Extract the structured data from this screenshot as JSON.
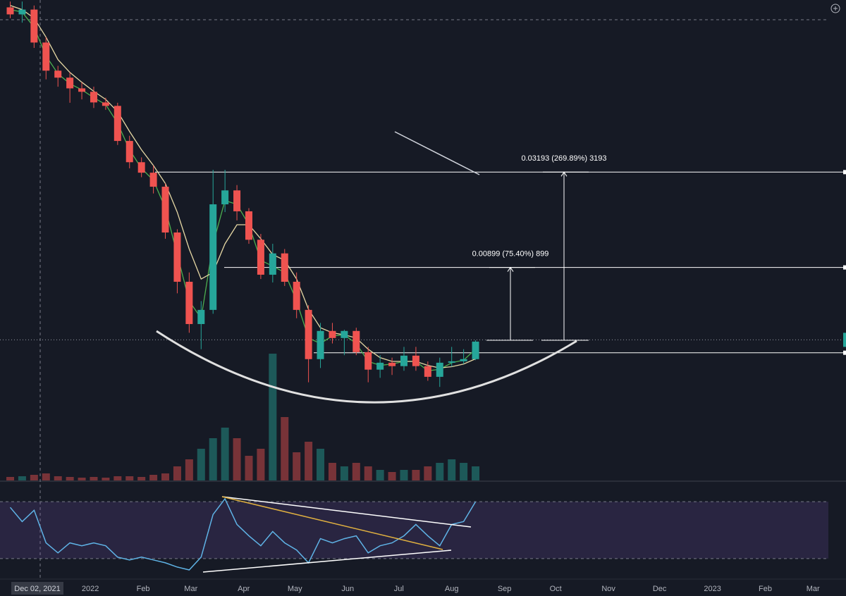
{
  "chart_data": [
    {
      "type": "candlestick",
      "log_scale": true,
      "xlim": [
        "2021-11-09",
        "2023-03-10"
      ],
      "ylim": [
        0.004,
        0.167
      ],
      "xticks": [
        {
          "value": "2022-01-01",
          "label": "2022"
        },
        {
          "value": "2022-02-01",
          "label": "Feb"
        },
        {
          "value": "2022-03-01",
          "label": "Mar"
        },
        {
          "value": "2022-04-01",
          "label": "Apr"
        },
        {
          "value": "2022-05-01",
          "label": "May"
        },
        {
          "value": "2022-06-01",
          "label": "Jun"
        },
        {
          "value": "2022-07-01",
          "label": "Jul"
        },
        {
          "value": "2022-08-01",
          "label": "Aug"
        },
        {
          "value": "2022-09-01",
          "label": "Sep"
        },
        {
          "value": "2022-10-01",
          "label": "Oct"
        },
        {
          "value": "2022-11-01",
          "label": "Nov"
        },
        {
          "value": "2022-12-01",
          "label": "Dec"
        },
        {
          "value": "2023-01-01",
          "label": "2023"
        },
        {
          "value": "2023-02-01",
          "label": "Feb"
        },
        {
          "value": "2023-03-01",
          "label": "Mar"
        }
      ],
      "crosshair": {
        "value": "2021-12-02",
        "label": "Dec 02, 2021"
      },
      "up_color": "#26a69a",
      "down_color": "#ef5350",
      "x": [
        "2021-11-15",
        "2021-11-22",
        "2021-11-29",
        "2021-12-06",
        "2021-12-13",
        "2021-12-20",
        "2021-12-27",
        "2022-01-03",
        "2022-01-10",
        "2022-01-17",
        "2022-01-24",
        "2022-01-31",
        "2022-02-07",
        "2022-02-14",
        "2022-02-21",
        "2022-02-28",
        "2022-03-07",
        "2022-03-14",
        "2022-03-21",
        "2022-03-28",
        "2022-04-04",
        "2022-04-11",
        "2022-04-18",
        "2022-04-25",
        "2022-05-02",
        "2022-05-09",
        "2022-05-16",
        "2022-05-23",
        "2022-05-30",
        "2022-06-06",
        "2022-06-13",
        "2022-06-20",
        "2022-06-27",
        "2022-07-04",
        "2022-07-11",
        "2022-07-18",
        "2022-07-25",
        "2022-08-01",
        "2022-08-08",
        "2022-08-15"
      ],
      "open": [
        0.1577,
        0.1493,
        0.155,
        0.1199,
        0.0963,
        0.0912,
        0.0839,
        0.0817,
        0.0752,
        0.0732,
        0.0557,
        0.0472,
        0.0435,
        0.039,
        0.0273,
        0.0186,
        0.01338,
        0.01494,
        0.034,
        0.0379,
        0.0322,
        0.0258,
        0.01965,
        0.0232,
        0.0186,
        0.01494,
        0.01018,
        0.01268,
        0.012,
        0.01268,
        0.01075,
        0.00938,
        0.0099,
        0.00964,
        0.01046,
        0.00964,
        0.00887,
        0.0099,
        0.01001,
        0.01018
      ],
      "high": [
        0.165,
        0.165,
        0.16,
        0.125,
        0.1,
        0.095,
        0.088,
        0.085,
        0.078,
        0.075,
        0.058,
        0.049,
        0.046,
        0.04,
        0.028,
        0.02,
        0.016,
        0.0445,
        0.0445,
        0.0395,
        0.033,
        0.027,
        0.025,
        0.024,
        0.02,
        0.0155,
        0.0135,
        0.0135,
        0.0128,
        0.013,
        0.0112,
        0.0105,
        0.0103,
        0.0112,
        0.0112,
        0.01,
        0.0103,
        0.0112,
        0.011,
        0.0118
      ],
      "low": [
        0.145,
        0.14,
        0.115,
        0.09,
        0.085,
        0.075,
        0.077,
        0.072,
        0.071,
        0.054,
        0.045,
        0.042,
        0.037,
        0.026,
        0.017,
        0.0125,
        0.011,
        0.0145,
        0.032,
        0.03,
        0.025,
        0.019,
        0.0185,
        0.018,
        0.014,
        0.0085,
        0.0095,
        0.0115,
        0.0105,
        0.0105,
        0.0085,
        0.0088,
        0.009,
        0.0093,
        0.0093,
        0.0086,
        0.0082,
        0.0096,
        0.0098,
        0.0101
      ],
      "close": [
        0.1493,
        0.155,
        0.1199,
        0.0963,
        0.0912,
        0.0839,
        0.0817,
        0.0752,
        0.0732,
        0.0557,
        0.0472,
        0.0435,
        0.039,
        0.0273,
        0.0186,
        0.01338,
        0.01494,
        0.034,
        0.0379,
        0.0322,
        0.0258,
        0.01965,
        0.0232,
        0.0186,
        0.01494,
        0.01018,
        0.01268,
        0.012,
        0.01268,
        0.01075,
        0.00938,
        0.0099,
        0.00964,
        0.01046,
        0.00964,
        0.00887,
        0.0099,
        0.01001,
        0.01018,
        0.01167
      ],
      "volume_ylim": [
        0,
        200
      ],
      "volume": [
        5,
        6,
        8,
        10,
        6,
        5,
        4,
        5,
        4,
        6,
        6,
        5,
        8,
        10,
        20,
        30,
        45,
        60,
        75,
        60,
        35,
        45,
        180,
        90,
        40,
        55,
        45,
        25,
        20,
        25,
        20,
        15,
        12,
        15,
        15,
        20,
        25,
        30,
        25,
        20
      ],
      "series": [
        {
          "color": "#4caf50",
          "values": [
            0.155,
            0.152,
            0.135,
            0.108,
            0.094,
            0.087,
            0.083,
            0.078,
            0.074,
            0.064,
            0.052,
            0.045,
            0.041,
            0.033,
            0.023,
            0.016,
            0.014,
            0.025,
            0.035,
            0.034,
            0.029,
            0.022,
            0.021,
            0.02,
            0.016,
            0.012,
            0.0115,
            0.0122,
            0.0123,
            0.0115,
            0.01,
            0.0097,
            0.0098,
            0.01,
            0.01,
            0.0093,
            0.0094,
            0.0099,
            0.0101,
            0.011
          ]
        },
        {
          "color": "#e6d8a4",
          "values": [
            0.16,
            0.155,
            0.145,
            0.125,
            0.105,
            0.095,
            0.088,
            0.082,
            0.077,
            0.07,
            0.06,
            0.052,
            0.046,
            0.04,
            0.032,
            0.024,
            0.019,
            0.02,
            0.025,
            0.029,
            0.029,
            0.026,
            0.023,
            0.022,
            0.019,
            0.015,
            0.013,
            0.0125,
            0.0123,
            0.012,
            0.011,
            0.0103,
            0.01,
            0.01,
            0.01,
            0.0097,
            0.0095,
            0.0096,
            0.0098,
            0.0102
          ]
        }
      ],
      "levels": [
        0.0437,
        0.0208,
        0.01183,
        0.0107
      ],
      "annotations": [
        {
          "text": "0.03193 (269.89%) 3193"
        },
        {
          "text": "0.00899 (75.40%) 899"
        }
      ]
    },
    {
      "type": "line",
      "xlim": [
        "2021-11-09",
        "2023-03-10"
      ],
      "ylim": [
        19,
        81
      ],
      "hlines": [
        30,
        70
      ],
      "band_color": "#7e57c2",
      "color": "#5fb3e6",
      "x": [
        "2021-11-15",
        "2021-11-22",
        "2021-11-29",
        "2021-12-06",
        "2021-12-13",
        "2021-12-20",
        "2021-12-27",
        "2022-01-03",
        "2022-01-10",
        "2022-01-17",
        "2022-01-24",
        "2022-01-31",
        "2022-02-07",
        "2022-02-14",
        "2022-02-21",
        "2022-02-28",
        "2022-03-07",
        "2022-03-14",
        "2022-03-21",
        "2022-03-28",
        "2022-04-04",
        "2022-04-11",
        "2022-04-18",
        "2022-04-25",
        "2022-05-02",
        "2022-05-09",
        "2022-05-16",
        "2022-05-23",
        "2022-05-30",
        "2022-06-06",
        "2022-06-13",
        "2022-06-20",
        "2022-06-27",
        "2022-07-04",
        "2022-07-11",
        "2022-07-18",
        "2022-07-25",
        "2022-08-01",
        "2022-08-08",
        "2022-08-15"
      ],
      "values": [
        66,
        56,
        64,
        41,
        34,
        41,
        39,
        41,
        39,
        31,
        29,
        31,
        29,
        27,
        24,
        22,
        31,
        61,
        72,
        54,
        46,
        39,
        49,
        41,
        36,
        27,
        44,
        41,
        44,
        46,
        34,
        39,
        41,
        46,
        54,
        46,
        39,
        54,
        56,
        70
      ]
    }
  ]
}
